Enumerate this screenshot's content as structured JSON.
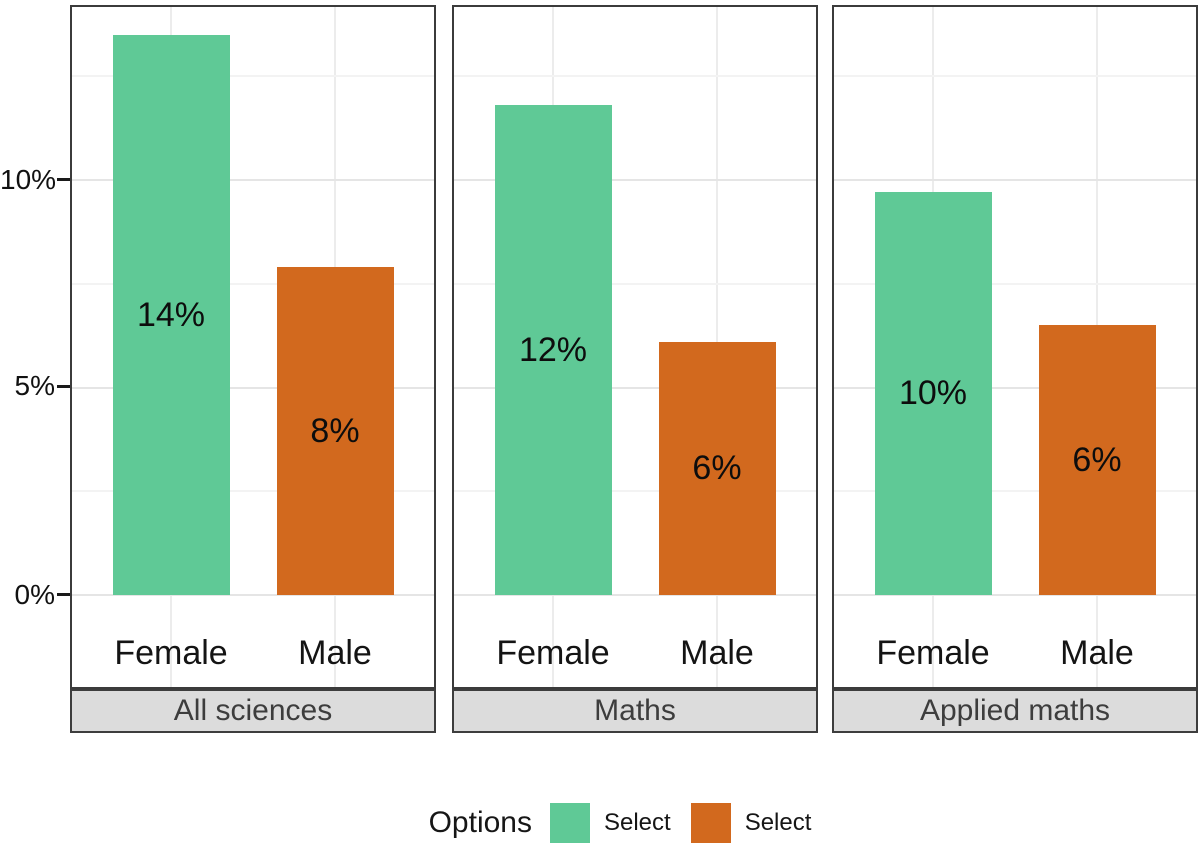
{
  "chart_data": {
    "type": "bar",
    "title": "",
    "xlabel": "",
    "ylabel": "",
    "facets": [
      {
        "label": "All sciences",
        "categories": [
          "Female",
          "Male"
        ],
        "bar_labels": [
          "14%",
          "8%"
        ],
        "values_pct": [
          13.5,
          7.9
        ]
      },
      {
        "label": "Maths",
        "categories": [
          "Female",
          "Male"
        ],
        "bar_labels": [
          "12%",
          "6%"
        ],
        "values_pct": [
          11.8,
          6.1
        ]
      },
      {
        "label": "Applied maths",
        "categories": [
          "Female",
          "Male"
        ],
        "bar_labels": [
          "10%",
          "6%"
        ],
        "values_pct": [
          9.7,
          6.5
        ]
      }
    ],
    "series": [
      {
        "name": "Select",
        "color": "#5fc996"
      },
      {
        "name": "Select",
        "color": "#d2691e"
      }
    ],
    "y_axis": {
      "tick_labels": [
        "0%",
        "5%",
        "10%"
      ],
      "unit": "percent",
      "range_pct": [
        -2.3,
        14.2
      ],
      "gridlines_major_pct": [
        0,
        5,
        10
      ],
      "gridlines_minor_pct": [
        2.5,
        7.5,
        12.5
      ]
    },
    "legend": {
      "title": "Options",
      "position": "bottom",
      "entries": [
        {
          "label": "Select",
          "color": "#5fc996"
        },
        {
          "label": "Select",
          "color": "#d2691e"
        }
      ]
    },
    "colors": {
      "bar_female": "#5fc996",
      "bar_male": "#d2691e",
      "panel_border": "#3b3b3b",
      "strip_fill": "#dcdcdc",
      "strip_text": "#3d3d3d"
    }
  }
}
